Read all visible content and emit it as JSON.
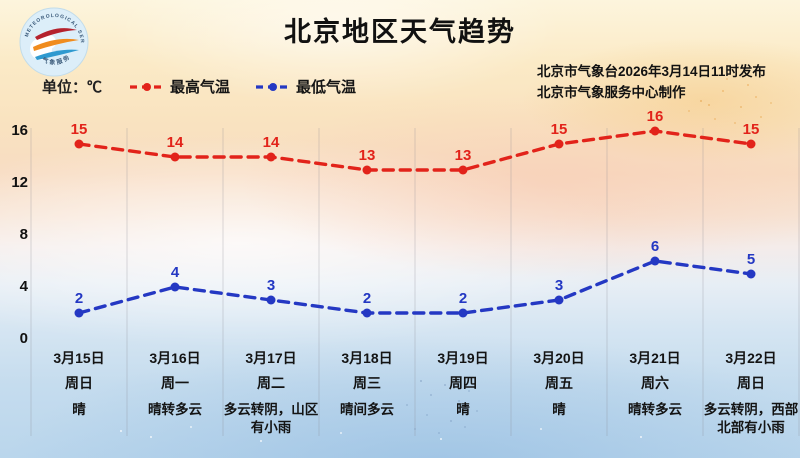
{
  "header": {
    "title": "北京地区天气趋势",
    "unit_label": "单位：℃",
    "publisher_line1": "北京市气象台2026年3月14日11时发布",
    "publisher_line2": "北京市气象服务中心制作"
  },
  "legend": [
    {
      "label": "最高气温",
      "color": "#e2231a"
    },
    {
      "label": "最低气温",
      "color": "#2438c3"
    }
  ],
  "logo": {
    "arc_text_top": "METEOROLOGICAL SERVICE",
    "arc_text_bottom": "气象服务"
  },
  "chart_data": {
    "type": "line",
    "title": "北京地区天气趋势",
    "unit": "℃",
    "line_style": "dashed",
    "grid": "vertical-only",
    "legend_position": "top-left",
    "ylim": [
      0,
      17
    ],
    "yticks": [
      0,
      4,
      8,
      12,
      16
    ],
    "categories": [
      {
        "date": "3月15日",
        "weekday": "周日",
        "weather": "晴"
      },
      {
        "date": "3月16日",
        "weekday": "周一",
        "weather": "晴转多云"
      },
      {
        "date": "3月17日",
        "weekday": "周二",
        "weather": "多云转阴，山区有小雨"
      },
      {
        "date": "3月18日",
        "weekday": "周三",
        "weather": "晴间多云"
      },
      {
        "date": "3月19日",
        "weekday": "周四",
        "weather": "晴"
      },
      {
        "date": "3月20日",
        "weekday": "周五",
        "weather": "晴"
      },
      {
        "date": "3月21日",
        "weekday": "周六",
        "weather": "晴转多云"
      },
      {
        "date": "3月22日",
        "weekday": "周日",
        "weather": "多云转阴，西部北部有小雨"
      }
    ],
    "series": [
      {
        "name": "最高气温",
        "color": "#e2231a",
        "values": [
          15,
          14,
          14,
          13,
          13,
          15,
          16,
          15
        ]
      },
      {
        "name": "最低气温",
        "color": "#2438c3",
        "values": [
          2,
          4,
          3,
          2,
          2,
          3,
          6,
          5
        ]
      }
    ]
  }
}
